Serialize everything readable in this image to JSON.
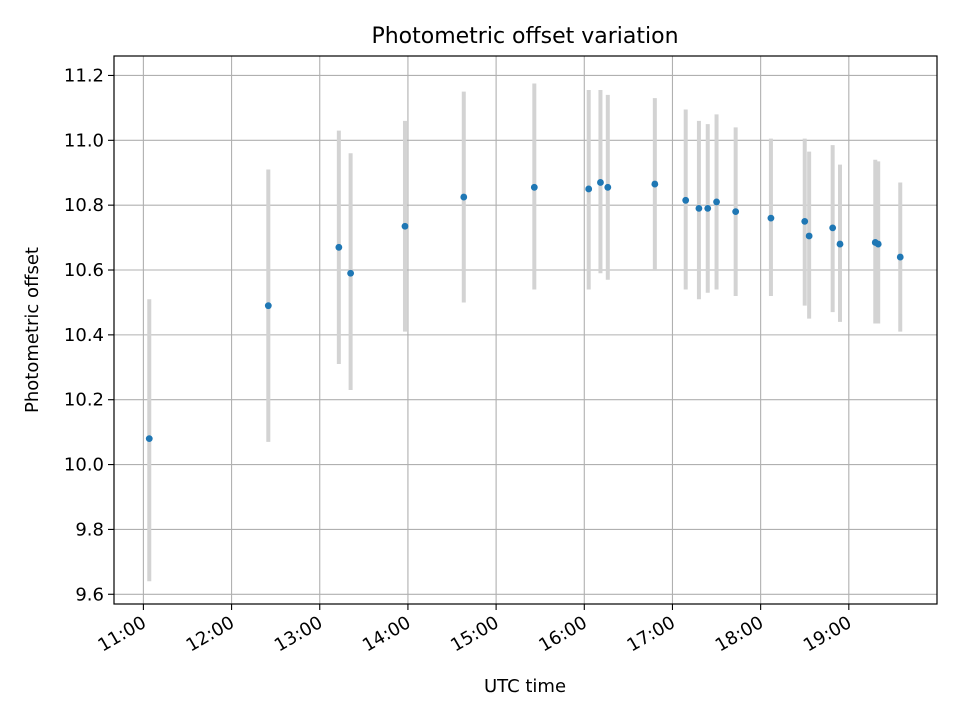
{
  "chart_data": {
    "type": "scatter",
    "title": "Photometric offset variation",
    "xlabel": "UTC time",
    "ylabel": "Photometric offset",
    "x_unit": "hour (UTC)",
    "xlim": [
      "10:40",
      "20:00"
    ],
    "ylim": [
      9.57,
      11.26
    ],
    "x_ticks": [
      "11:00",
      "12:00",
      "13:00",
      "14:00",
      "15:00",
      "16:00",
      "17:00",
      "18:00",
      "19:00"
    ],
    "y_ticks": [
      "9.6",
      "9.8",
      "10.0",
      "10.2",
      "10.4",
      "10.6",
      "10.8",
      "11.0",
      "11.2"
    ],
    "grid": true,
    "legend": "none",
    "colors": {
      "point": "#1f77b4",
      "errorbar": "#d3d3d3",
      "grid": "#b0b0b0"
    },
    "series": [
      {
        "points": [
          {
            "x": "11:04",
            "y": 10.08,
            "low": 9.64,
            "high": 10.51
          },
          {
            "x": "12:25",
            "y": 10.49,
            "low": 10.07,
            "high": 10.91
          },
          {
            "x": "13:13",
            "y": 10.67,
            "low": 10.31,
            "high": 11.03
          },
          {
            "x": "13:21",
            "y": 10.59,
            "low": 10.23,
            "high": 10.96
          },
          {
            "x": "13:58",
            "y": 10.735,
            "low": 10.41,
            "high": 11.06
          },
          {
            "x": "14:38",
            "y": 10.825,
            "low": 10.5,
            "high": 11.15
          },
          {
            "x": "15:26",
            "y": 10.855,
            "low": 10.54,
            "high": 11.175
          },
          {
            "x": "16:03",
            "y": 10.85,
            "low": 10.54,
            "high": 11.155
          },
          {
            "x": "16:11",
            "y": 10.87,
            "low": 10.59,
            "high": 11.155
          },
          {
            "x": "16:16",
            "y": 10.855,
            "low": 10.57,
            "high": 11.14
          },
          {
            "x": "16:48",
            "y": 10.865,
            "low": 10.6,
            "high": 11.13
          },
          {
            "x": "17:09",
            "y": 10.815,
            "low": 10.54,
            "high": 11.095
          },
          {
            "x": "17:18",
            "y": 10.79,
            "low": 10.51,
            "high": 11.06
          },
          {
            "x": "17:24",
            "y": 10.79,
            "low": 10.53,
            "high": 11.05
          },
          {
            "x": "17:30",
            "y": 10.81,
            "low": 10.54,
            "high": 11.08
          },
          {
            "x": "17:43",
            "y": 10.78,
            "low": 10.52,
            "high": 11.04
          },
          {
            "x": "18:07",
            "y": 10.76,
            "low": 10.52,
            "high": 11.005
          },
          {
            "x": "18:30",
            "y": 10.75,
            "low": 10.49,
            "high": 11.005
          },
          {
            "x": "18:33",
            "y": 10.705,
            "low": 10.45,
            "high": 10.965
          },
          {
            "x": "18:49",
            "y": 10.73,
            "low": 10.47,
            "high": 10.985
          },
          {
            "x": "18:54",
            "y": 10.68,
            "low": 10.44,
            "high": 10.925
          },
          {
            "x": "19:18",
            "y": 10.685,
            "low": 10.435,
            "high": 10.94
          },
          {
            "x": "19:20",
            "y": 10.68,
            "low": 10.435,
            "high": 10.935
          },
          {
            "x": "19:35",
            "y": 10.64,
            "low": 10.41,
            "high": 10.87
          }
        ]
      }
    ]
  }
}
